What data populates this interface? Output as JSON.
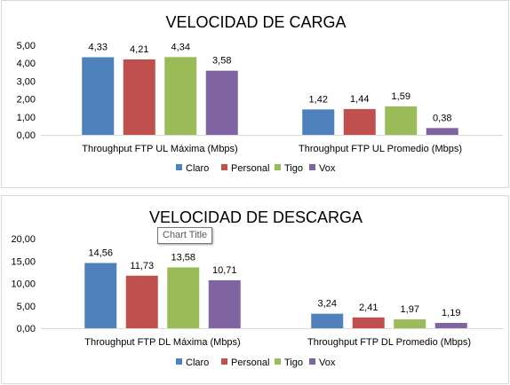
{
  "series_colors": [
    "#4f81bd",
    "#c0504d",
    "#9bbb59",
    "#8064a2"
  ],
  "tooltip": {
    "text": "Chart Title"
  },
  "chart_data": [
    {
      "type": "bar",
      "title": "VELOCIDAD DE CARGA",
      "categories": [
        "Throughput FTP UL Máxima (Mbps)",
        "Throughput FTP UL Promedio (Mbps)"
      ],
      "series": [
        {
          "name": "Claro",
          "values": [
            4.33,
            1.42
          ],
          "labels": [
            "4,33",
            "1,42"
          ]
        },
        {
          "name": "Personal",
          "values": [
            4.21,
            1.44
          ],
          "labels": [
            "4,21",
            "1,44"
          ]
        },
        {
          "name": "Tigo",
          "values": [
            4.34,
            1.59
          ],
          "labels": [
            "4,34",
            "1,59"
          ]
        },
        {
          "name": "Vox",
          "values": [
            3.58,
            0.38
          ],
          "labels": [
            "3,58",
            "0,38"
          ]
        }
      ],
      "ylim": [
        0,
        5
      ],
      "yticks": [
        "0,00",
        "1,00",
        "2,00",
        "3,00",
        "4,00",
        "5,00"
      ],
      "grid": false,
      "legend": "bottom"
    },
    {
      "type": "bar",
      "title": "VELOCIDAD DE DESCARGA",
      "categories": [
        "Throughput FTP DL Máxima (Mbps)",
        "Throughput FTP DL Promedio (Mbps)"
      ],
      "series": [
        {
          "name": "Claro",
          "values": [
            14.56,
            3.24
          ],
          "labels": [
            "14,56",
            "3,24"
          ]
        },
        {
          "name": "Personal",
          "values": [
            11.73,
            2.41
          ],
          "labels": [
            "11,73",
            "2,41"
          ]
        },
        {
          "name": "Tigo",
          "values": [
            13.58,
            1.97
          ],
          "labels": [
            "13,58",
            "1,97"
          ]
        },
        {
          "name": "Vox",
          "values": [
            10.71,
            1.19
          ],
          "labels": [
            "10,71",
            "1,19"
          ]
        }
      ],
      "ylim": [
        0,
        20
      ],
      "yticks": [
        "0,00",
        "5,00",
        "10,00",
        "15,00",
        "20,00"
      ],
      "grid": false,
      "legend": "bottom"
    }
  ]
}
